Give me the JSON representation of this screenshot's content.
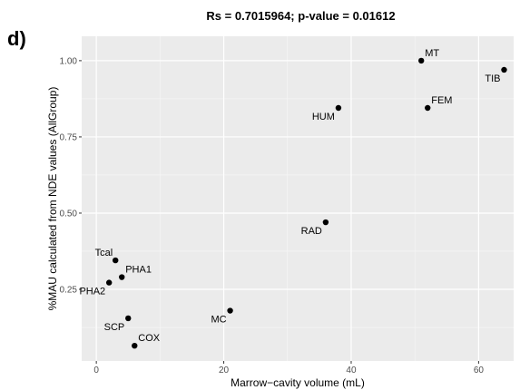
{
  "panel_tag": "d)",
  "chart_data": {
    "type": "scatter",
    "title": "Rs = 0.7015964; p-value = 0.01612",
    "xlabel": "Marrow−cavity volume (mL)",
    "ylabel": "%MAU calculated from NDE values (AllGroup)",
    "xlim": [
      -2.3,
      65.5
    ],
    "ylim": [
      0.015,
      1.08
    ],
    "xticks": [
      0,
      20,
      40,
      60
    ],
    "xtick_labels": [
      "0",
      "20",
      "40",
      "60"
    ],
    "yticks": [
      0.25,
      0.5,
      0.75,
      1.0
    ],
    "ytick_labels": [
      "0.25",
      "0.50",
      "0.75",
      "1.00"
    ],
    "grid": true,
    "background": "#ebebeb",
    "point_color": "#000000",
    "points": [
      {
        "label": "MT",
        "x": 51,
        "y": 1.0,
        "pos": "above-right"
      },
      {
        "label": "TIB",
        "x": 64,
        "y": 0.97,
        "pos": "below-left"
      },
      {
        "label": "HUM",
        "x": 38,
        "y": 0.845,
        "pos": "below-left"
      },
      {
        "label": "FEM",
        "x": 52,
        "y": 0.845,
        "pos": "above-right"
      },
      {
        "label": "RAD",
        "x": 36,
        "y": 0.47,
        "pos": "below-left"
      },
      {
        "label": "Tcal",
        "x": 3,
        "y": 0.345,
        "pos": "above-left"
      },
      {
        "label": "PHA1",
        "x": 4,
        "y": 0.29,
        "pos": "above-right"
      },
      {
        "label": "PHA2",
        "x": 2,
        "y": 0.272,
        "pos": "below-left"
      },
      {
        "label": "MC",
        "x": 21,
        "y": 0.18,
        "pos": "below-left"
      },
      {
        "label": "SCP",
        "x": 5,
        "y": 0.155,
        "pos": "below-left"
      },
      {
        "label": "COX",
        "x": 6,
        "y": 0.065,
        "pos": "above-right"
      }
    ]
  }
}
